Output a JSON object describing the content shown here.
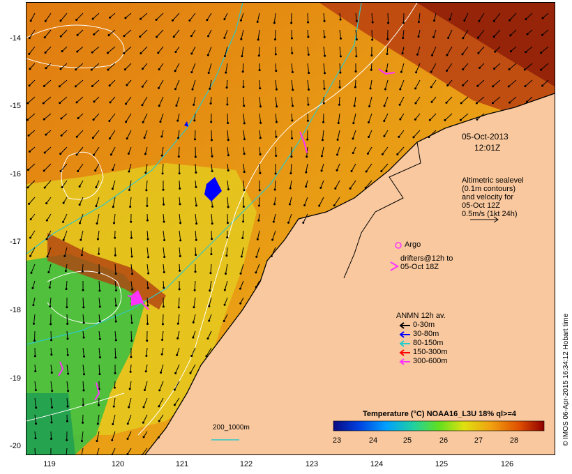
{
  "map": {
    "y_ticks": [
      "-14",
      "-15",
      "-16",
      "-17",
      "-18",
      "-19",
      "-20"
    ],
    "x_ticks": [
      "119",
      "120",
      "121",
      "122",
      "123",
      "124",
      "125",
      "126"
    ],
    "date_label": "05-Oct-2013",
    "time_label": "12:01Z",
    "altimetry_note": [
      "Altimetric sealevel",
      "(0.1m contours)",
      "and velocity for",
      "05-Oct 12Z",
      "0.5m/s (1kt 24h)"
    ],
    "argo_label": "Argo",
    "drifters_label": [
      "drifters@12h to",
      "05-Oct 18Z"
    ],
    "anmn_title": "ANMN 12h av.",
    "anmn_legend": [
      {
        "label": "0-30m",
        "color": "#000000"
      },
      {
        "label": "30-80m",
        "color": "#0000ff"
      },
      {
        "label": "80-150m",
        "color": "#22cccc"
      },
      {
        "label": "150-300m",
        "color": "#ff0000"
      },
      {
        "label": "300-600m",
        "color": "#ff33ff"
      }
    ],
    "depth_contour_label": "200_1000m",
    "colorbar_title": "Temperature (°C) NOAA16_L3U 18% ql>=4",
    "colorbar_ticks": [
      "23",
      "24",
      "25",
      "26",
      "27",
      "28"
    ],
    "credit": "© IMOS 06-Apr-2015 16:34:12 Hobart time"
  }
}
